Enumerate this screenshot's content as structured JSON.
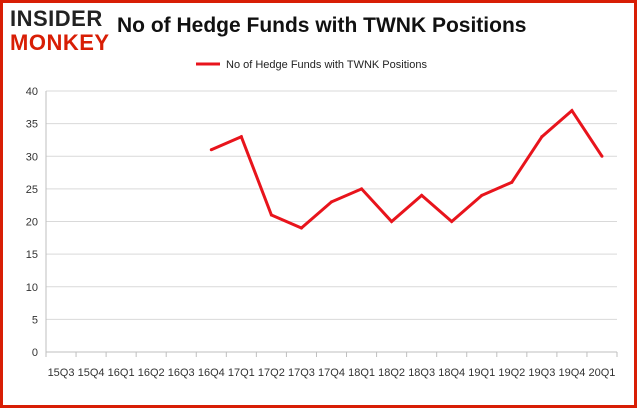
{
  "logo": {
    "line1": "INSIDER",
    "line2": "MONKEY"
  },
  "chart_data": {
    "type": "line",
    "title": "No of Hedge Funds with TWNK Positions",
    "xlabel": "",
    "ylabel": "",
    "categories": [
      "15Q3",
      "15Q4",
      "16Q1",
      "16Q2",
      "16Q3",
      "16Q4",
      "17Q1",
      "17Q2",
      "17Q3",
      "17Q4",
      "18Q1",
      "18Q2",
      "18Q3",
      "18Q4",
      "19Q1",
      "19Q2",
      "19Q3",
      "19Q4",
      "20Q1"
    ],
    "series": [
      {
        "name": "No of Hedge Funds with TWNK Positions",
        "color": "#e8141c",
        "values": [
          null,
          null,
          null,
          null,
          null,
          31,
          33,
          21,
          19,
          23,
          25,
          20,
          24,
          20,
          24,
          26,
          33,
          37,
          30
        ]
      }
    ],
    "ylim": [
      0,
      40
    ],
    "yticks": [
      0,
      5,
      10,
      15,
      20,
      25,
      30,
      35,
      40
    ],
    "grid": true,
    "legend": "top-center"
  }
}
